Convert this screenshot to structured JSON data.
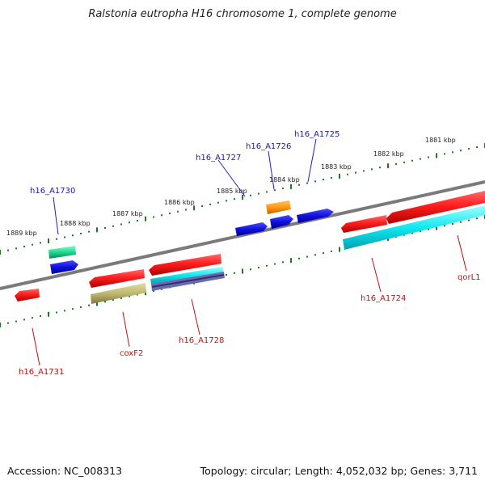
{
  "title": "Ralstonia eutropha H16 chromosome 1, complete genome",
  "footer": {
    "accession": "Accession: NC_008313",
    "summary": "Topology: circular; Length: 4,052,032 bp; Genes: 3,711"
  },
  "colors": {
    "backbone": "#7a7a7a",
    "tick": "#1e7a1e",
    "label_forward": "#1a1aa8",
    "label_reverse": "#c01010",
    "red": "#ff2020",
    "blue": "#1010e0",
    "orange": "#ff9a10",
    "green": "#20d890",
    "cyan": "#10e8f0",
    "khaki": "#c0b870",
    "purple": "#6060a8"
  },
  "tick_labels": [
    "1889 kbp",
    "1888 kbp",
    "1887 kbp",
    "1886 kbp",
    "1885 kbp",
    "1884 kbp",
    "1883 kbp",
    "1882 kbp",
    "1881 kbp"
  ],
  "gene_labels": {
    "h16_A1730": "h16_A1730",
    "h16_A1727": "h16_A1727",
    "h16_A1726": "h16_A1726",
    "h16_A1725": "h16_A1725",
    "h16_A1731": "h16_A1731",
    "coxF2": "coxF2",
    "h16_A1728": "h16_A1728",
    "h16_A1724": "h16_A1724",
    "qorL1": "qorL1"
  }
}
